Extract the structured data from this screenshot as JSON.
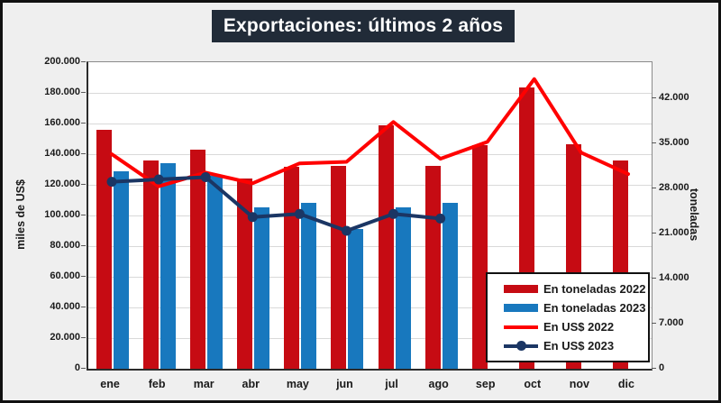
{
  "frame": {
    "title": "Exportaciones: últimos 2 años"
  },
  "chart_data": {
    "type": "bar+line combo",
    "categories": [
      "ene",
      "feb",
      "mar",
      "abr",
      "may",
      "jun",
      "jul",
      "ago",
      "sep",
      "oct",
      "nov",
      "dic"
    ],
    "series": [
      {
        "name": "En toneladas 2022",
        "type": "bar",
        "axis": "right",
        "color": "#C60B13",
        "values": [
          37100,
          32300,
          34000,
          29500,
          31400,
          31500,
          37800,
          31500,
          34700,
          43700,
          34900,
          32400
        ]
      },
      {
        "name": "En toneladas 2023",
        "type": "bar",
        "axis": "right",
        "color": "#1878BE",
        "values": [
          30600,
          31900,
          30000,
          25100,
          25800,
          21700,
          25100,
          25700,
          null,
          null,
          null,
          null
        ]
      },
      {
        "name": "En US$ 2022",
        "type": "line",
        "axis": "left",
        "color": "#FF0000",
        "marker": false,
        "values": [
          140000,
          119000,
          128000,
          121000,
          134000,
          135000,
          161000,
          137000,
          148000,
          189000,
          141000,
          127000
        ]
      },
      {
        "name": "En US$ 2023",
        "type": "line",
        "axis": "left",
        "color": "#1B3664",
        "marker": true,
        "values": [
          122000,
          123500,
          125000,
          99000,
          101000,
          90000,
          101000,
          98000,
          null,
          null,
          null,
          null
        ]
      }
    ],
    "left_axis": {
      "label": "miles de US$",
      "min": 0,
      "max": 200000,
      "tick_labels": [
        "0",
        "20.000",
        "40.000",
        "60.000",
        "80.000",
        "100.000",
        "120.000",
        "140.000",
        "160.000",
        "180.000",
        "200.000"
      ],
      "tick_values": [
        0,
        20000,
        40000,
        60000,
        80000,
        100000,
        120000,
        140000,
        160000,
        180000,
        200000
      ]
    },
    "right_axis": {
      "label": "toneladas",
      "min": 0,
      "max": 47600,
      "tick_labels": [
        "0",
        "7.000",
        "14.000",
        "21.000",
        "28.000",
        "35.000",
        "42.000"
      ],
      "tick_values": [
        0,
        7000,
        14000,
        21000,
        28000,
        35000,
        42000
      ]
    },
    "legend": {
      "position": "bottom-right-inside",
      "entries": [
        "En toneladas 2022",
        "En toneladas 2023",
        "En US$ 2022",
        "En US$ 2023"
      ]
    },
    "grid": "horizontal, every 20.000 (left axis)",
    "plot_background": "#FFFFFF",
    "page_background": "#EFEFEF",
    "title_background": "#212B38",
    "gridline_color": "#D9D9D9"
  }
}
